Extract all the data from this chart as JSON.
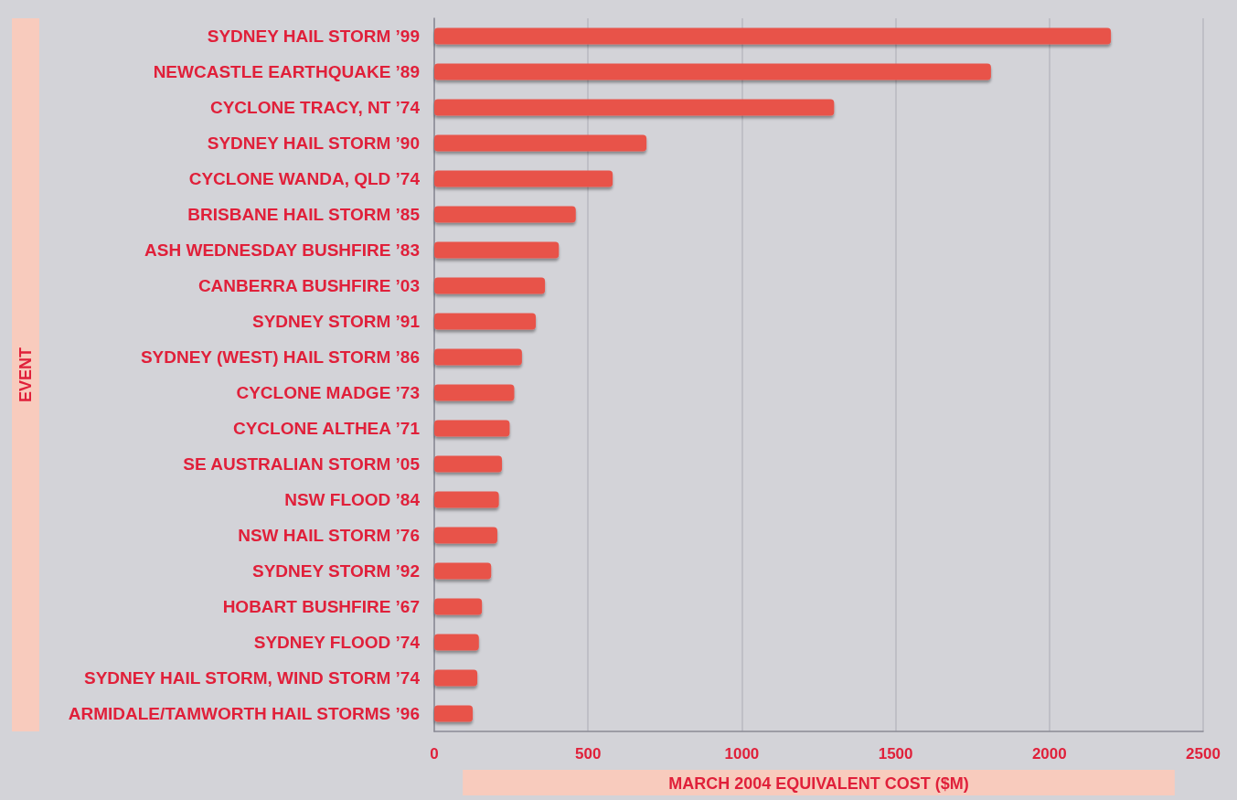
{
  "chart_data": {
    "type": "bar",
    "orientation": "horizontal",
    "xlabel": "MARCH 2004 EQUIVALENT COST ($M)",
    "ylabel": "EVENT",
    "categories": [
      "SYDNEY HAIL STORM ’99",
      "NEWCASTLE EARTHQUAKE ’89",
      "CYCLONE TRACY, NT ’74",
      "SYDNEY HAIL STORM ’90",
      "CYCLONE WANDA, QLD ’74",
      "BRISBANE HAIL STORM ’85",
      "ASH WEDNESDAY BUSHFIRE ’83",
      "CANBERRA BUSHFIRE ’03",
      "SYDNEY STORM ’91",
      "SYDNEY (WEST) HAIL STORM ’86",
      "CYCLONE MADGE ’73",
      "CYCLONE ALTHEA ’71",
      "SE AUSTRALIAN STORM ’05",
      "NSW FLOOD ’84",
      "NSW HAIL STORM ’76",
      "SYDNEY STORM ’92",
      "HOBART BUSHFIRE ’67",
      "SYDNEY FLOOD ’74",
      "SYDNEY HAIL STORM, WIND STORM ’74",
      "ARMIDALE/TAMWORTH HAIL STORMS ’96"
    ],
    "values": [
      2200,
      1810,
      1300,
      690,
      580,
      460,
      405,
      360,
      330,
      285,
      260,
      245,
      220,
      210,
      205,
      185,
      155,
      145,
      140,
      125
    ],
    "color": "#e8534a",
    "xlim": [
      0,
      2500
    ],
    "xticks": [
      0,
      500,
      1000,
      1500,
      2000,
      2500
    ],
    "grid": "x"
  }
}
